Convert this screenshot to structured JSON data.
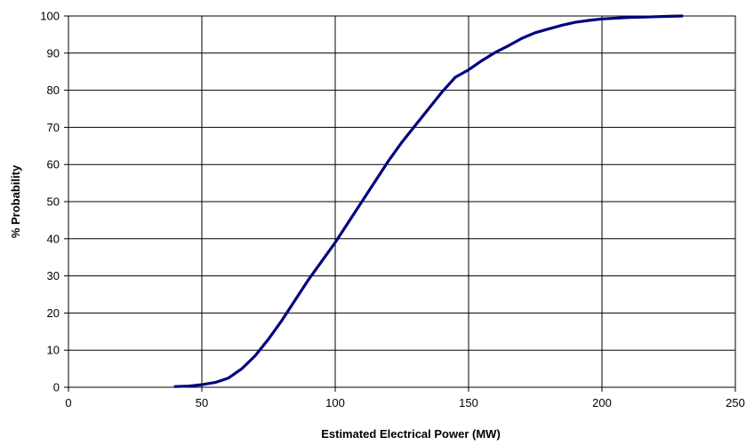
{
  "chart_data": {
    "type": "line",
    "title": "",
    "xlabel": "Estimated Electrical Power (MW)",
    "ylabel": "% Probability",
    "xlim": [
      0,
      250
    ],
    "ylim": [
      0,
      100
    ],
    "xticks": [
      0,
      50,
      100,
      150,
      200,
      250
    ],
    "yticks": [
      0,
      10,
      20,
      30,
      40,
      50,
      60,
      70,
      80,
      90,
      100
    ],
    "grid": true,
    "legend": "none",
    "series": [
      {
        "color": "#000080",
        "x": [
          40,
          45,
          50,
          55,
          60,
          65,
          70,
          75,
          80,
          85,
          90,
          95,
          100,
          105,
          110,
          115,
          120,
          125,
          130,
          135,
          140,
          145,
          150,
          155,
          160,
          165,
          170,
          175,
          180,
          185,
          190,
          195,
          200,
          205,
          210,
          215,
          220,
          225,
          230
        ],
        "y": [
          0.2,
          0.3,
          0.7,
          1.3,
          2.5,
          5,
          8.5,
          13,
          18,
          23.5,
          29,
          34,
          39,
          44.5,
          50,
          55.5,
          61,
          66,
          70.5,
          75,
          79.5,
          83.5,
          85.5,
          88,
          90.2,
          92,
          94,
          95.5,
          96.5,
          97.5,
          98.3,
          98.8,
          99.2,
          99.4,
          99.6,
          99.7,
          99.8,
          99.9,
          100
        ]
      }
    ]
  }
}
